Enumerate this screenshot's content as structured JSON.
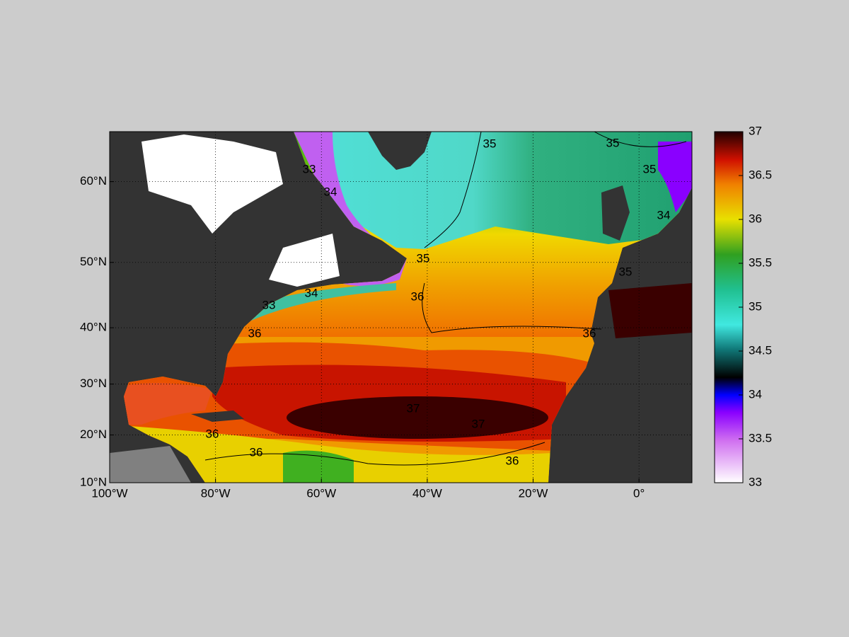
{
  "chart_data": {
    "type": "map",
    "xlim": [
      -100,
      10
    ],
    "ylim": [
      10,
      65
    ],
    "xticks": [
      {
        "value": -100,
        "label": "100°W"
      },
      {
        "value": -80,
        "label": "80°W"
      },
      {
        "value": -60,
        "label": "60°W"
      },
      {
        "value": -40,
        "label": "40°W"
      },
      {
        "value": -20,
        "label": "20°W"
      },
      {
        "value": 0,
        "label": "0°"
      }
    ],
    "yticks": [
      {
        "value": 10,
        "label": "10°N"
      },
      {
        "value": 20,
        "label": "20°N"
      },
      {
        "value": 30,
        "label": "30°N"
      },
      {
        "value": 40,
        "label": "40°N"
      },
      {
        "value": 50,
        "label": "50°N"
      },
      {
        "value": 60,
        "label": "60°N"
      }
    ],
    "grid": true,
    "colorbar": {
      "clim": [
        33,
        37
      ],
      "ticks": [
        33,
        33.5,
        34,
        34.5,
        35,
        35.5,
        36,
        36.5,
        37
      ]
    },
    "contour_labels": [
      35,
      35,
      35,
      35,
      36,
      36,
      36,
      36,
      36,
      36,
      33,
      34,
      33,
      34,
      34,
      35,
      37,
      37
    ]
  }
}
